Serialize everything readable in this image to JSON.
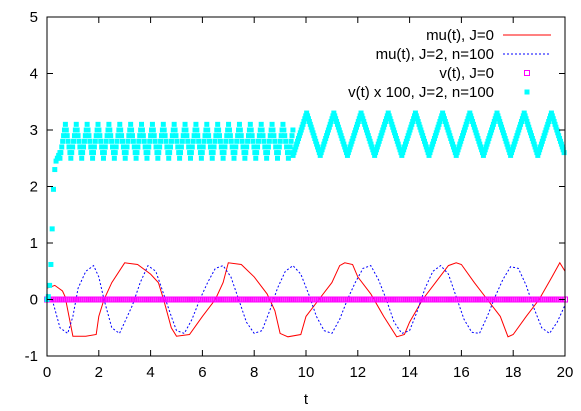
{
  "chart_data": {
    "type": "line",
    "title": "",
    "xlabel": "t",
    "ylabel": "",
    "xlim": [
      0,
      20
    ],
    "ylim": [
      -1,
      5
    ],
    "xticks": [
      0,
      2,
      4,
      6,
      8,
      10,
      12,
      14,
      16,
      18,
      20
    ],
    "yticks": [
      -1,
      0,
      1,
      2,
      3,
      4,
      5
    ],
    "grid": false,
    "legend_position": "top-right",
    "series": [
      {
        "name": "mu(t), J=0",
        "style": "line",
        "color": "#ff0000",
        "x": [
          0,
          0.3,
          0.6,
          0.7,
          1.0,
          1.5,
          1.9,
          2.0,
          2.2,
          2.5,
          3.0,
          3.5,
          4.0,
          4.3,
          4.5,
          4.8,
          5.0,
          5.5,
          6.0,
          6.5,
          6.8,
          7.0,
          7.5,
          8.0,
          8.5,
          8.8,
          9.0,
          9.3,
          9.8,
          10.0,
          10.5,
          11.0,
          11.3,
          11.5,
          11.8,
          12.0,
          12.5,
          13.0,
          13.5,
          13.8,
          14.0,
          14.5,
          15.0,
          15.5,
          15.8,
          16.0,
          16.5,
          17.0,
          17.5,
          17.8,
          18.0,
          18.5,
          19.0,
          19.5,
          19.8,
          20.0
        ],
        "y": [
          0.2,
          0.25,
          0.15,
          0.05,
          -0.65,
          -0.65,
          -0.62,
          -0.3,
          0.0,
          0.3,
          0.65,
          0.62,
          0.45,
          0.3,
          0.0,
          -0.5,
          -0.65,
          -0.62,
          -0.3,
          0.0,
          0.3,
          0.65,
          0.62,
          0.4,
          0.1,
          -0.2,
          -0.6,
          -0.66,
          -0.62,
          -0.3,
          0.0,
          0.3,
          0.6,
          0.65,
          0.62,
          0.4,
          0.1,
          -0.3,
          -0.66,
          -0.62,
          -0.4,
          0.0,
          0.3,
          0.6,
          0.65,
          0.62,
          0.3,
          0.0,
          -0.3,
          -0.66,
          -0.62,
          -0.3,
          0.0,
          0.4,
          0.65,
          0.5
        ]
      },
      {
        "name": "mu(t), J=2, n=100",
        "style": "dotted",
        "color": "#0000ff",
        "x": [
          0,
          0.2,
          0.5,
          0.8,
          1.0,
          1.2,
          1.5,
          1.8,
          2.0,
          2.2,
          2.5,
          2.8,
          3.0,
          3.3,
          3.6,
          3.9,
          4.2,
          4.5,
          4.8,
          5.0,
          5.3,
          5.6,
          5.9,
          6.2,
          6.5,
          6.8,
          7.1,
          7.4,
          7.7,
          8.0,
          8.3,
          8.6,
          8.9,
          9.2,
          9.5,
          9.8,
          10.1,
          10.4,
          10.7,
          11.0,
          11.3,
          11.6,
          11.9,
          12.2,
          12.5,
          12.8,
          13.1,
          13.4,
          13.7,
          14.0,
          14.3,
          14.6,
          14.9,
          15.2,
          15.5,
          15.8,
          16.1,
          16.4,
          16.7,
          17.0,
          17.3,
          17.6,
          17.9,
          18.2,
          18.5,
          18.8,
          19.1,
          19.4,
          19.7,
          20.0
        ],
        "y": [
          0.1,
          0.0,
          -0.5,
          -0.6,
          -0.3,
          0.2,
          0.5,
          0.6,
          0.4,
          0.0,
          -0.5,
          -0.6,
          -0.4,
          -0.1,
          0.3,
          0.6,
          0.5,
          0.1,
          -0.3,
          -0.55,
          -0.6,
          -0.35,
          0.0,
          0.3,
          0.55,
          0.6,
          0.4,
          0.0,
          -0.4,
          -0.6,
          -0.55,
          -0.2,
          0.2,
          0.5,
          0.6,
          0.45,
          0.1,
          -0.3,
          -0.55,
          -0.6,
          -0.35,
          0.0,
          0.3,
          0.55,
          0.6,
          0.35,
          0.0,
          -0.4,
          -0.6,
          -0.55,
          -0.2,
          0.2,
          0.5,
          0.6,
          0.45,
          0.05,
          -0.35,
          -0.58,
          -0.6,
          -0.3,
          0.05,
          0.35,
          0.58,
          0.55,
          0.25,
          -0.15,
          -0.5,
          -0.6,
          -0.4,
          -0.1
        ]
      },
      {
        "name": "v(t), J=0",
        "style": "open-square",
        "color": "#ff00ff",
        "x_range": [
          0,
          20
        ],
        "x_step": 0.08,
        "y_constant": 0.0
      },
      {
        "name": "v(t) x 100, J=2, n=100",
        "style": "filled-square",
        "color": "#00ffff",
        "x": [
          0.0,
          0.05,
          0.1,
          0.15,
          0.2,
          0.25,
          0.3,
          0.35,
          0.4,
          0.45,
          0.5
        ],
        "y": [
          0.0,
          0.05,
          0.25,
          0.62,
          1.25,
          1.95,
          2.3,
          2.45,
          2.5,
          2.55,
          2.6
        ],
        "oscillation": [
          {
            "x_from": 0.5,
            "x_to": 9.5,
            "period": 0.42,
            "y_min": 2.5,
            "y_max": 3.1
          },
          {
            "x_from": 9.5,
            "x_to": 20.0,
            "period": 1.05,
            "y_min": 2.55,
            "y_max": 3.3
          }
        ]
      }
    ]
  }
}
